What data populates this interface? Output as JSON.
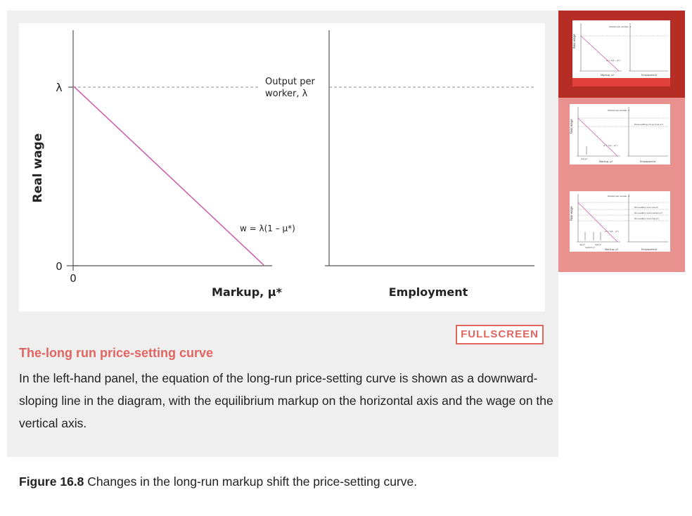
{
  "figure": {
    "y_axis_label": "Real wage",
    "lambda_tick": "λ",
    "zero_y": "0",
    "zero_x": "0",
    "output_label_1": "Output per",
    "output_label_2": "worker, λ",
    "curve_label": "w = λ(1 – μ*)",
    "x_axis_left": "Markup, μ*",
    "x_axis_right": "Employment",
    "line_color": "#c94fa8"
  },
  "fullscreen_label": "FULLSCREEN",
  "step": {
    "title": "The-long run price-setting curve",
    "text": "In the left-hand panel, the equation of the long-run price-setting curve is shown as a downward-sloping line in the diagram, with the equilibrium markup on the horizontal axis and the wage on the vertical axis."
  },
  "caption": {
    "label": "Figure 16.8",
    "text": " Changes in the long-run markup shift the price-setting curve."
  },
  "thumbnails": [
    {
      "active": true,
      "y_label": "Real wage",
      "x_left": "Markup, μ*",
      "x_right": "Employment",
      "output_label": "Output per worker, λ",
      "curve_label": "w = λ(1 – μ*)"
    },
    {
      "active": false,
      "y_label": "Real wage",
      "x_left": "Markup, μ*",
      "x_right": "Employment",
      "output_label": "Output per worker, λ",
      "curve_label": "w = λ(1 – μ*)",
      "psc_label": "Price-setting curve (low μ*)",
      "markup_label": "low μ*"
    },
    {
      "active": false,
      "y_label": "Real wage",
      "x_left": "Markup, μ*",
      "x_right": "Employment",
      "output_label": "Output per worker, λ",
      "curve_label": "w = λ(1 – μ*)",
      "psc_labels": [
        "Price-setting curve (low μ*)",
        "Price-setting curve (medium μ*)",
        "Price-setting curve (high μ*)"
      ],
      "markup_labels": [
        "low μ*",
        "high μ*",
        "medium μ*"
      ]
    }
  ]
}
